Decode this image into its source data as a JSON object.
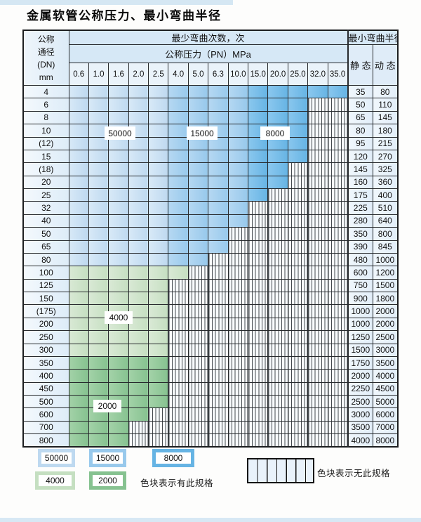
{
  "title": "金属软管公称压力、最小弯曲半径",
  "table": {
    "corner_header": [
      "公称",
      "通径",
      "(DN)",
      "mm"
    ],
    "bend_cycles_header": "最少弯曲次数，次",
    "pressure_header": "公称压力（PN）MPa",
    "radius_header": "最小弯曲半径",
    "static_header": "静 态",
    "dynamic_header": "动 态",
    "pressures": [
      "0.6",
      "1.0",
      "1.6",
      "2.0",
      "2.5",
      "4.0",
      "5.0",
      "6.3",
      "10.0",
      "15.0",
      "20.0",
      "25.0",
      "32.0",
      "35.0"
    ],
    "rows": [
      {
        "dn": "4",
        "max_pressure_index": 14,
        "zone": "blue",
        "static": "35",
        "dynamic": "80"
      },
      {
        "dn": "6",
        "max_pressure_index": 12,
        "zone": "blue",
        "static": "50",
        "dynamic": "110"
      },
      {
        "dn": "8",
        "max_pressure_index": 12,
        "zone": "blue",
        "static": "65",
        "dynamic": "145"
      },
      {
        "dn": "10",
        "max_pressure_index": 12,
        "zone": "blue",
        "static": "80",
        "dynamic": "180"
      },
      {
        "dn": "(12)",
        "max_pressure_index": 12,
        "zone": "blue",
        "static": "95",
        "dynamic": "215"
      },
      {
        "dn": "15",
        "max_pressure_index": 12,
        "zone": "blue",
        "static": "120",
        "dynamic": "270"
      },
      {
        "dn": "(18)",
        "max_pressure_index": 11,
        "zone": "blue",
        "static": "145",
        "dynamic": "325"
      },
      {
        "dn": "20",
        "max_pressure_index": 11,
        "zone": "blue",
        "static": "160",
        "dynamic": "360"
      },
      {
        "dn": "25",
        "max_pressure_index": 10,
        "zone": "blue",
        "static": "175",
        "dynamic": "400"
      },
      {
        "dn": "32",
        "max_pressure_index": 9,
        "zone": "blue",
        "static": "225",
        "dynamic": "510"
      },
      {
        "dn": "40",
        "max_pressure_index": 9,
        "zone": "blue",
        "static": "280",
        "dynamic": "640"
      },
      {
        "dn": "50",
        "max_pressure_index": 8,
        "zone": "blue",
        "static": "350",
        "dynamic": "800"
      },
      {
        "dn": "65",
        "max_pressure_index": 8,
        "zone": "blue",
        "static": "390",
        "dynamic": "845"
      },
      {
        "dn": "80",
        "max_pressure_index": 7,
        "zone": "blue",
        "static": "480",
        "dynamic": "1000"
      },
      {
        "dn": "100",
        "max_pressure_index": 6,
        "zone": "4000",
        "static": "600",
        "dynamic": "1200"
      },
      {
        "dn": "125",
        "max_pressure_index": 5,
        "zone": "4000",
        "static": "750",
        "dynamic": "1500"
      },
      {
        "dn": "150",
        "max_pressure_index": 5,
        "zone": "4000",
        "static": "900",
        "dynamic": "1800"
      },
      {
        "dn": "(175)",
        "max_pressure_index": 5,
        "zone": "4000",
        "static": "1000",
        "dynamic": "2000"
      },
      {
        "dn": "200",
        "max_pressure_index": 5,
        "zone": "4000",
        "static": "1000",
        "dynamic": "2000"
      },
      {
        "dn": "250",
        "max_pressure_index": 5,
        "zone": "4000",
        "static": "1250",
        "dynamic": "2500"
      },
      {
        "dn": "300",
        "max_pressure_index": 5,
        "zone": "4000",
        "static": "1500",
        "dynamic": "3000"
      },
      {
        "dn": "350",
        "max_pressure_index": 5,
        "zone": "2000",
        "static": "1750",
        "dynamic": "3500"
      },
      {
        "dn": "400",
        "max_pressure_index": 5,
        "zone": "2000",
        "static": "2000",
        "dynamic": "4000"
      },
      {
        "dn": "450",
        "max_pressure_index": 5,
        "zone": "2000",
        "static": "2250",
        "dynamic": "4500"
      },
      {
        "dn": "500",
        "max_pressure_index": 5,
        "zone": "2000",
        "static": "2500",
        "dynamic": "5000"
      },
      {
        "dn": "600",
        "max_pressure_index": 4,
        "zone": "2000",
        "static": "3000",
        "dynamic": "6000"
      },
      {
        "dn": "700",
        "max_pressure_index": 3,
        "zone": "2000",
        "static": "3500",
        "dynamic": "7000"
      },
      {
        "dn": "800",
        "max_pressure_index": 3,
        "zone": "2000",
        "static": "4000",
        "dynamic": "8000"
      }
    ]
  },
  "zones": {
    "blue_column_zones": [
      {
        "cycles": "50000",
        "from": 1,
        "to": 5
      },
      {
        "cycles": "15000",
        "from": 6,
        "to": 9
      },
      {
        "cycles": "8000",
        "from": 10,
        "to": 14
      }
    ],
    "colors": {
      "50000": [
        "#d8e9f7",
        "#bed9f0"
      ],
      "15000": [
        "#b5d8f2",
        "#98c9ec"
      ],
      "8000": [
        "#8ac7ee",
        "#66b4e4"
      ],
      "4000": [
        "#d9e9d5",
        "#c5dfc1"
      ],
      "2000": [
        "#a3d2a8",
        "#86c290"
      ]
    }
  },
  "overlay_labels": [
    {
      "text": "50000"
    },
    {
      "text": "15000"
    },
    {
      "text": "8000"
    },
    {
      "text": "4000"
    },
    {
      "text": "2000"
    }
  ],
  "legend": {
    "items": [
      {
        "label": "50000"
      },
      {
        "label": "15000"
      },
      {
        "label": "8000"
      },
      {
        "label": "4000"
      },
      {
        "label": "2000"
      }
    ],
    "has_spec_text": "色块表示有此规格",
    "no_spec_text": "色块表示无此规格"
  }
}
